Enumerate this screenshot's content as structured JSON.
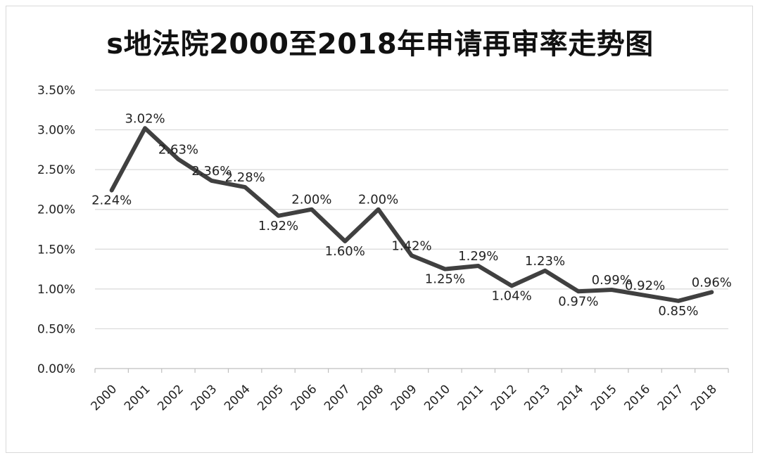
{
  "chart_data": {
    "type": "line",
    "title": "s地法院2000至2018年申请再审率走势图",
    "xlabel": "",
    "ylabel": "",
    "categories": [
      "2000",
      "2001",
      "2002",
      "2003",
      "2004",
      "2005",
      "2006",
      "2007",
      "2008",
      "2009",
      "2010",
      "2011",
      "2012",
      "2013",
      "2014",
      "2015",
      "2016",
      "2017",
      "2018"
    ],
    "values": [
      2.24,
      3.02,
      2.63,
      2.36,
      2.28,
      1.92,
      2.0,
      1.6,
      2.0,
      1.42,
      1.25,
      1.29,
      1.04,
      1.23,
      0.97,
      0.99,
      0.92,
      0.85,
      0.96
    ],
    "data_labels": [
      "2.24%",
      "3.02%",
      "2.63%",
      "2.36%",
      "2.28%",
      "1.92%",
      "2.00%",
      "1.60%",
      "2.00%",
      "1.42%",
      "1.25%",
      "1.29%",
      "1.04%",
      "1.23%",
      "0.97%",
      "0.99%",
      "0.92%",
      "0.85%",
      "0.96%"
    ],
    "ylim": [
      0,
      3.5
    ],
    "yticks": [
      "0.00%",
      "0.50%",
      "1.00%",
      "1.50%",
      "2.00%",
      "2.50%",
      "3.00%",
      "3.50%"
    ],
    "grid": true,
    "legend": "none",
    "line_color": "#404040",
    "grid_color": "#d9d9d9"
  }
}
